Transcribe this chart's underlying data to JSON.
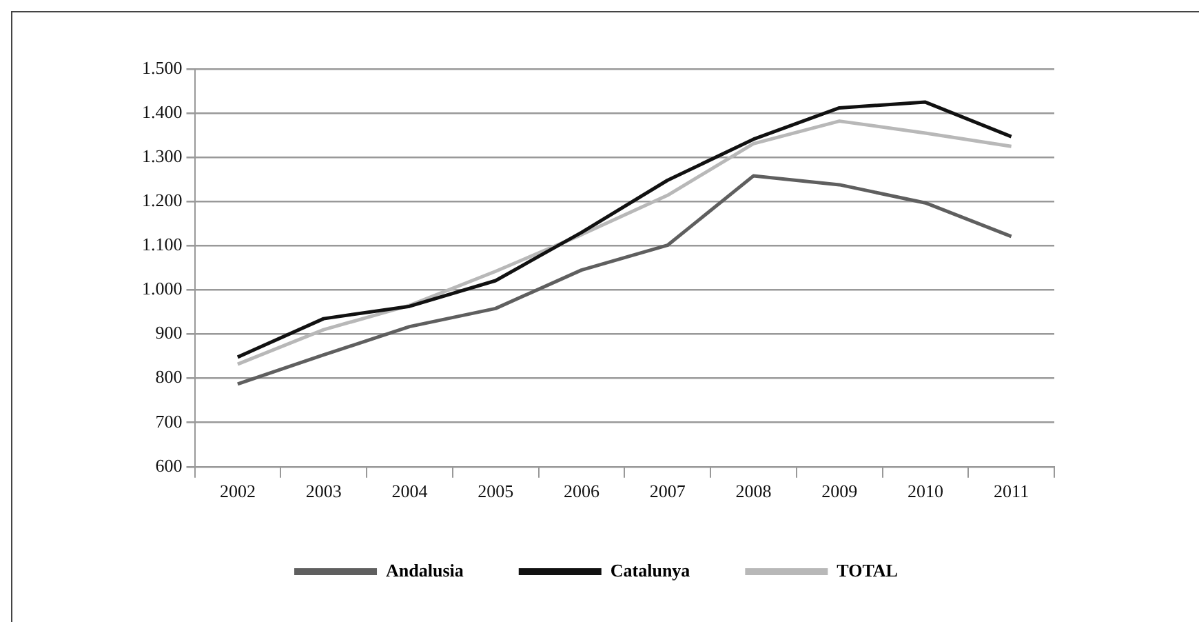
{
  "chart_data": {
    "type": "line",
    "categories": [
      "2002",
      "2003",
      "2004",
      "2005",
      "2006",
      "2007",
      "2008",
      "2009",
      "2010",
      "2011"
    ],
    "series": [
      {
        "name": "Andalusia",
        "color": "#5f5f5f",
        "values": [
          787,
          853,
          917,
          958,
          1045,
          1101,
          1258,
          1238,
          1197,
          1121
        ]
      },
      {
        "name": "Catalunya",
        "color": "#111111",
        "values": [
          848,
          935,
          963,
          1021,
          1130,
          1248,
          1341,
          1412,
          1425,
          1347
        ]
      },
      {
        "name": "TOTAL",
        "color": "#b8b8b8",
        "values": [
          832,
          910,
          965,
          1042,
          1125,
          1214,
          1331,
          1382,
          1355,
          1325
        ]
      }
    ],
    "ylim": [
      600,
      1500
    ],
    "yticks": [
      {
        "value": 600,
        "label": "600"
      },
      {
        "value": 700,
        "label": "700"
      },
      {
        "value": 800,
        "label": "800"
      },
      {
        "value": 900,
        "label": "900"
      },
      {
        "value": 1000,
        "label": "1.000"
      },
      {
        "value": 1100,
        "label": "1.100"
      },
      {
        "value": 1200,
        "label": "1.200"
      },
      {
        "value": 1300,
        "label": "1.300"
      },
      {
        "value": 1400,
        "label": "1.400"
      },
      {
        "value": 1500,
        "label": "1.500"
      }
    ],
    "grid": "y",
    "legend": "bottom",
    "marker": "none",
    "line_style": "solid"
  }
}
